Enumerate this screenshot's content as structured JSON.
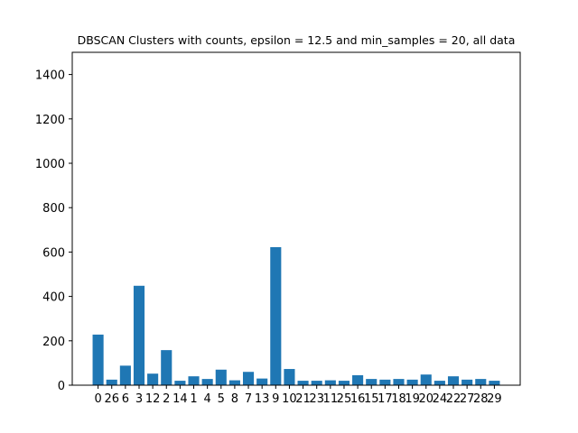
{
  "chart_data": {
    "type": "bar",
    "title": "DBSCAN Clusters with counts, epsilon = 12.5 and min_samples = 20, all data",
    "xlabel": "",
    "ylabel": "",
    "ylim": [
      0,
      1500
    ],
    "yticks": [
      0,
      200,
      400,
      600,
      800,
      1000,
      1200,
      1400
    ],
    "categories": [
      "0",
      "26",
      "6",
      "3",
      "12",
      "2",
      "14",
      "1",
      "4",
      "5",
      "8",
      "7",
      "13",
      "9",
      "10",
      "21",
      "23",
      "11",
      "25",
      "16",
      "15",
      "17",
      "18",
      "19",
      "20",
      "24",
      "22",
      "27",
      "28",
      "29"
    ],
    "values": [
      228,
      25,
      88,
      448,
      52,
      158,
      20,
      40,
      28,
      70,
      22,
      60,
      30,
      622,
      73,
      20,
      20,
      22,
      20,
      45,
      28,
      25,
      28,
      25,
      48,
      20,
      40,
      25,
      28,
      20
    ],
    "bar_color": "#1f77b4",
    "grid": false
  }
}
